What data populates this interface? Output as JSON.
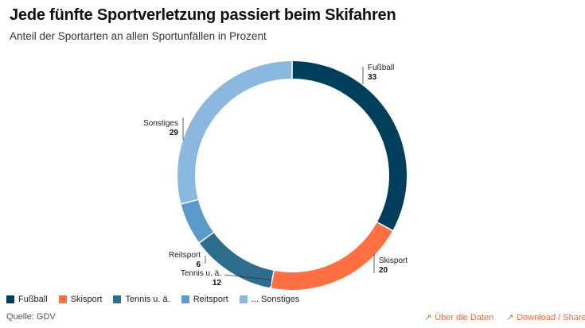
{
  "title": "Jede fünfte Sportverletzung passiert beim Skifahren",
  "subtitle": "Anteil der Sportarten an allen Sportunfällen in Prozent",
  "chart_data": {
    "type": "pie",
    "variant": "donut",
    "title": "Jede fünfte Sportverletzung passiert beim Skifahren",
    "subtitle": "Anteil der Sportarten an allen Sportunfällen in Prozent",
    "categories": [
      "Fußball",
      "Skisport",
      "Tennis u. ä.",
      "Reitsport",
      "Sonstiges"
    ],
    "values": [
      33,
      20,
      12,
      6,
      29
    ],
    "colors": [
      "#003f5c",
      "#ff7043",
      "#2f6d8f",
      "#5b9bc9",
      "#8ab8de"
    ],
    "legend_labels": [
      "Fußball",
      "Skisport",
      "Tennis u. ä.",
      "Reitsport",
      "... Sonstiges"
    ],
    "legend_position": "bottom-left"
  },
  "footer": {
    "source": "Quelle: GDV",
    "about_link": "Über die Daten",
    "download_link": "Download / Share",
    "link_arrow": "↗"
  }
}
